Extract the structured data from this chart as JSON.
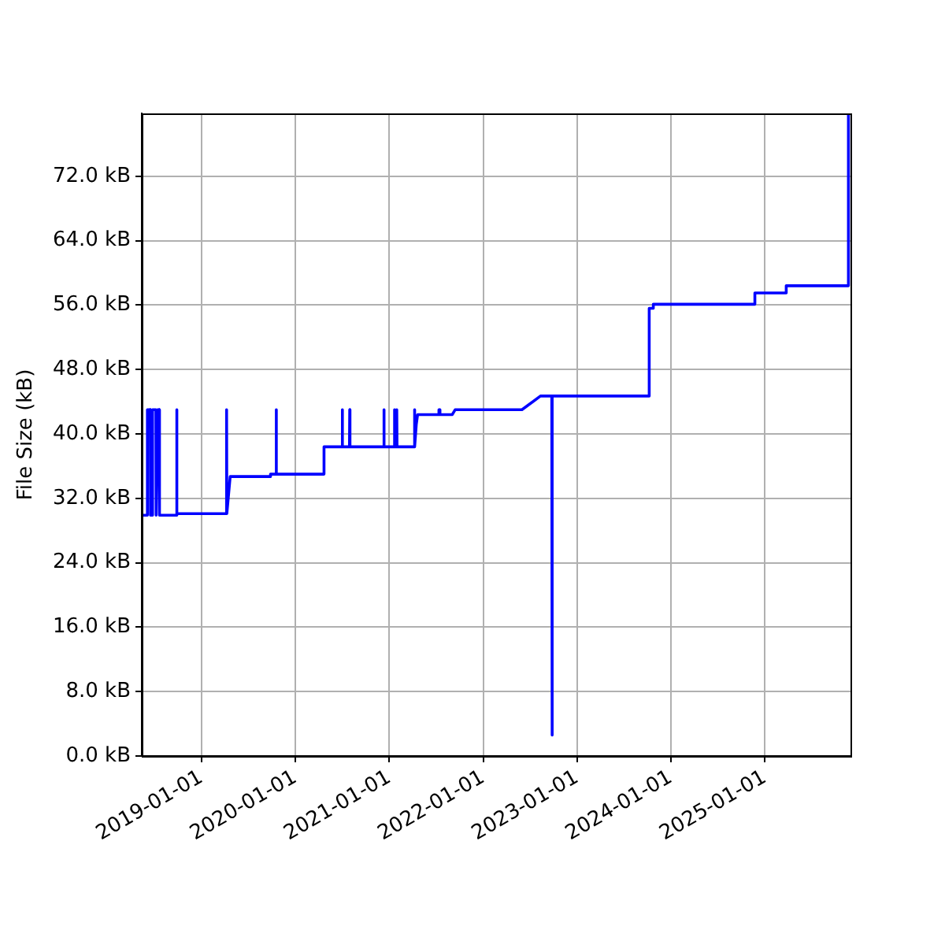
{
  "chart_data": {
    "type": "line",
    "ylabel": "File Size (kB)",
    "color": "#0000ff",
    "grid": true,
    "xlim": [
      "2018-05-14",
      "2025-11-30"
    ],
    "ylim": [
      0,
      79.8
    ],
    "xticks": [
      "2019-01-01",
      "2020-01-01",
      "2021-01-01",
      "2022-01-01",
      "2023-01-01",
      "2024-01-01",
      "2025-01-01"
    ],
    "yticks": [
      {
        "value": 0,
        "label": "0.0 kB"
      },
      {
        "value": 8,
        "label": "8.0 kB"
      },
      {
        "value": 16,
        "label": "16.0 kB"
      },
      {
        "value": 24,
        "label": "24.0 kB"
      },
      {
        "value": 32,
        "label": "32.0 kB"
      },
      {
        "value": 40,
        "label": "40.0 kB"
      },
      {
        "value": 48,
        "label": "48.0 kB"
      },
      {
        "value": 56,
        "label": "56.0 kB"
      },
      {
        "value": 64,
        "label": "64.0 kB"
      },
      {
        "value": 72,
        "label": "72.0 kB"
      }
    ],
    "x": [
      "2018-05-14",
      "2018-06-04",
      "2018-06-05",
      "2018-06-16",
      "2018-06-17",
      "2018-06-24",
      "2018-06-25",
      "2018-07-08",
      "2018-07-09",
      "2018-07-14",
      "2018-07-15",
      "2018-07-21",
      "2018-07-22",
      "2018-09-26",
      "2018-09-27",
      "2018-09-28",
      "2019-04-08",
      "2019-04-09",
      "2019-04-10",
      "2019-04-23",
      "2019-09-26",
      "2019-09-27",
      "2019-10-18",
      "2019-10-19",
      "2019-10-20",
      "2020-04-21",
      "2020-04-22",
      "2020-07-01",
      "2020-07-02",
      "2020-07-03",
      "2020-07-30",
      "2020-07-31",
      "2020-08-01",
      "2020-12-10",
      "2020-12-11",
      "2020-12-12",
      "2021-01-20",
      "2021-01-21",
      "2021-01-22",
      "2021-01-29",
      "2021-01-30",
      "2021-01-31",
      "2021-04-08",
      "2021-04-09",
      "2021-04-10",
      "2021-04-16",
      "2021-04-21",
      "2021-07-12",
      "2021-07-13",
      "2021-07-16",
      "2021-07-17",
      "2021-09-03",
      "2021-09-14",
      "2022-06-01",
      "2022-08-12",
      "2022-09-25",
      "2022-09-26",
      "2022-09-27",
      "2023-10-08",
      "2023-10-09",
      "2023-10-24",
      "2023-10-25",
      "2024-11-22",
      "2024-11-23",
      "2025-03-24",
      "2025-03-25",
      "2025-11-21",
      "2025-11-22"
    ],
    "values": [
      29.9,
      29.9,
      43,
      43,
      29.9,
      29.9,
      43,
      43,
      29.9,
      29.9,
      43,
      43,
      29.9,
      29.9,
      43,
      30.1,
      30.1,
      43,
      30.1,
      34.7,
      34.7,
      35,
      35,
      43,
      35,
      35,
      38.4,
      38.4,
      43,
      38.4,
      38.4,
      43,
      38.4,
      38.4,
      43,
      38.4,
      38.4,
      43,
      38.4,
      38.4,
      43,
      38.4,
      38.4,
      43,
      38.4,
      41.2,
      42.4,
      42.4,
      43,
      43,
      42.4,
      42.4,
      43,
      43,
      44.7,
      44.7,
      2.6,
      44.7,
      44.7,
      55.6,
      55.6,
      56.1,
      56.1,
      57.5,
      57.5,
      58.4,
      58.4,
      79.8
    ]
  }
}
